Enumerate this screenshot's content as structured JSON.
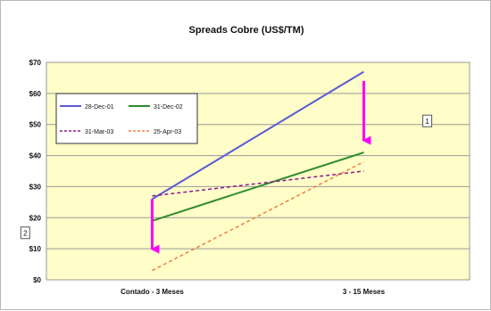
{
  "chart_data": {
    "type": "line",
    "title": "Spreads Cobre (US$/TM)",
    "categories": [
      "Contado - 3 Meses",
      "3 - 15 Meses"
    ],
    "y_ticks": [
      "$0",
      "$10",
      "$20",
      "$30",
      "$40",
      "$50",
      "$60",
      "$70"
    ],
    "ylim": [
      0,
      70
    ],
    "grid": true,
    "legend_position": "top-left",
    "series": [
      {
        "name": "28-Dec-01",
        "values": [
          26,
          67
        ],
        "color": "#5b5bd6",
        "dash": false
      },
      {
        "name": "31-Dec-02",
        "values": [
          19,
          41
        ],
        "color": "#2e8b2e",
        "dash": false
      },
      {
        "name": "31-Mar-03",
        "values": [
          27,
          35
        ],
        "color": "#8b1a8b",
        "dash": true
      },
      {
        "name": "25-Apr-03",
        "values": [
          3,
          38
        ],
        "color": "#f08040",
        "dash": true
      }
    ],
    "arrows": [
      {
        "category": 0,
        "from": 26,
        "to": 7,
        "color": "#ff00ff"
      },
      {
        "category": 1,
        "from": 64,
        "to": 42,
        "color": "#ff00ff"
      }
    ],
    "annotations": [
      {
        "text": "1",
        "category_pos": 1.3,
        "y": 51
      },
      {
        "text": "2",
        "category_pos": -0.6,
        "y": 15
      }
    ],
    "colors": {
      "plot_background": "#fffdc8",
      "grid": "#999999",
      "frame": "#b8b8b8"
    }
  }
}
